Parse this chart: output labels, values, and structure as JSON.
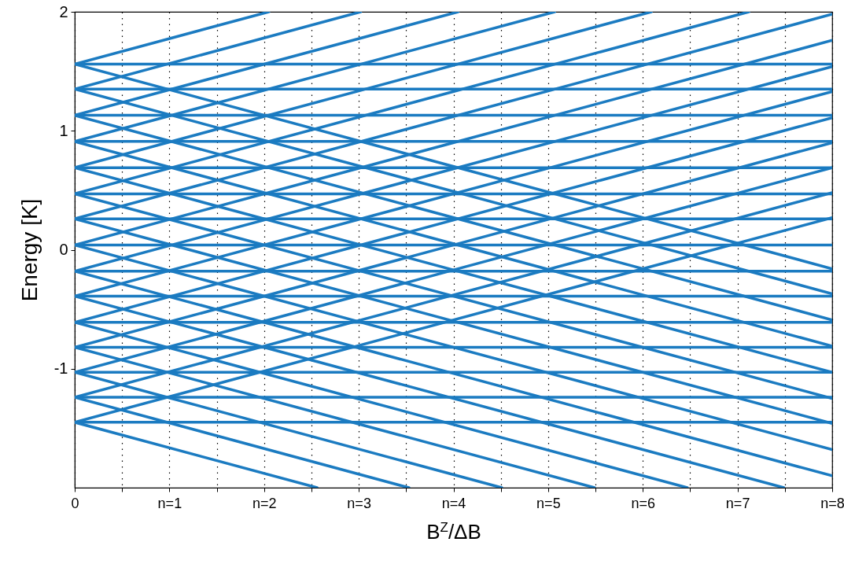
{
  "chart_data": {
    "type": "line",
    "xlabel": "B$^{Z}$/ΔB",
    "ylabel": "Energy [K]",
    "xlim": [
      0,
      8
    ],
    "ylim": [
      -2,
      2
    ],
    "xticks": [
      0,
      {
        "value": 0.5,
        "label": null
      },
      {
        "value": 1,
        "label": "n=1"
      },
      {
        "value": 1.5,
        "label": null
      },
      {
        "value": 2,
        "label": "n=2"
      },
      {
        "value": 2.5,
        "label": null
      },
      {
        "value": 3,
        "label": "n=3"
      },
      {
        "value": 3.5,
        "label": null
      },
      {
        "value": 4,
        "label": "n=4"
      },
      {
        "value": 4.5,
        "label": null
      },
      {
        "value": 5,
        "label": "n=5"
      },
      {
        "value": 5.5,
        "label": null
      },
      {
        "value": 6,
        "label": "n=6"
      },
      {
        "value": 6.5,
        "label": null
      },
      {
        "value": 7,
        "label": "n=7"
      },
      {
        "value": 7.5,
        "label": null
      },
      {
        "value": 8,
        "label": "n=8"
      }
    ],
    "yticks": [
      -1,
      0,
      1,
      2
    ],
    "grid": "x",
    "line_style": "solid",
    "series": [
      {
        "color": "#1b7bc1",
        "x": [
          0,
          8
        ],
        "values": [
          1.56,
          1.56
        ]
      },
      {
        "color": "#1b7bc1",
        "x": [
          0,
          8
        ],
        "values": [
          1.35,
          1.35
        ]
      },
      {
        "color": "#1b7bc1",
        "x": [
          0,
          8
        ],
        "values": [
          1.13,
          1.13
        ]
      },
      {
        "color": "#1b7bc1",
        "x": [
          0,
          8
        ],
        "values": [
          0.91,
          0.91
        ]
      },
      {
        "color": "#1b7bc1",
        "x": [
          0,
          8
        ],
        "values": [
          0.69,
          0.69
        ]
      },
      {
        "color": "#1b7bc1",
        "x": [
          0,
          8
        ],
        "values": [
          0.47,
          0.47
        ]
      },
      {
        "color": "#1b7bc1",
        "x": [
          0,
          8
        ],
        "values": [
          0.26,
          0.26
        ]
      },
      {
        "color": "#1b7bc1",
        "x": [
          0,
          8
        ],
        "values": [
          0.04,
          0.04
        ]
      },
      {
        "color": "#1b7bc1",
        "x": [
          0,
          8
        ],
        "values": [
          -0.18,
          -0.18
        ]
      },
      {
        "color": "#1b7bc1",
        "x": [
          0,
          8
        ],
        "values": [
          -0.39,
          -0.39
        ]
      },
      {
        "color": "#1b7bc1",
        "x": [
          0,
          8
        ],
        "values": [
          -0.61,
          -0.61
        ]
      },
      {
        "color": "#1b7bc1",
        "x": [
          0,
          8
        ],
        "values": [
          -0.82,
          -0.82
        ]
      },
      {
        "color": "#1b7bc1",
        "x": [
          0,
          8
        ],
        "values": [
          -1.03,
          -1.03
        ]
      },
      {
        "color": "#1b7bc1",
        "x": [
          0,
          8
        ],
        "values": [
          -1.24,
          -1.24
        ]
      },
      {
        "color": "#1b7bc1",
        "x": [
          0,
          8
        ],
        "values": [
          -1.45,
          -1.45
        ]
      },
      {
        "color": "#1b7bc1",
        "x": [
          0,
          2.05
        ],
        "values": [
          1.56,
          2
        ]
      },
      {
        "color": "#1b7bc1",
        "x": [
          0,
          3.02
        ],
        "values": [
          1.35,
          2
        ]
      },
      {
        "color": "#1b7bc1",
        "x": [
          0,
          4.05
        ],
        "values": [
          1.13,
          2
        ]
      },
      {
        "color": "#1b7bc1",
        "x": [
          0,
          5.07
        ],
        "values": [
          0.91,
          2
        ]
      },
      {
        "color": "#1b7bc1",
        "x": [
          0,
          6.09
        ],
        "values": [
          0.69,
          2
        ]
      },
      {
        "color": "#1b7bc1",
        "x": [
          0,
          7.12
        ],
        "values": [
          0.47,
          2
        ]
      },
      {
        "color": "#1b7bc1",
        "x": [
          0,
          8
        ],
        "values": [
          0.26,
          1.98
        ]
      },
      {
        "color": "#1b7bc1",
        "x": [
          0,
          8
        ],
        "values": [
          0.04,
          1.76
        ]
      },
      {
        "color": "#1b7bc1",
        "x": [
          0,
          8
        ],
        "values": [
          -0.18,
          1.54
        ]
      },
      {
        "color": "#1b7bc1",
        "x": [
          0,
          8
        ],
        "values": [
          -0.39,
          1.33
        ]
      },
      {
        "color": "#1b7bc1",
        "x": [
          0,
          8
        ],
        "values": [
          -0.61,
          1.11
        ]
      },
      {
        "color": "#1b7bc1",
        "x": [
          0,
          8
        ],
        "values": [
          -0.82,
          0.9
        ]
      },
      {
        "color": "#1b7bc1",
        "x": [
          0,
          8
        ],
        "values": [
          -1.03,
          0.69
        ]
      },
      {
        "color": "#1b7bc1",
        "x": [
          0,
          8
        ],
        "values": [
          -1.24,
          0.48
        ]
      },
      {
        "color": "#1b7bc1",
        "x": [
          0,
          8
        ],
        "values": [
          -1.45,
          0.27
        ]
      },
      {
        "color": "#1b7bc1",
        "x": [
          0,
          8
        ],
        "values": [
          1.56,
          -0.16
        ]
      },
      {
        "color": "#1b7bc1",
        "x": [
          0,
          8
        ],
        "values": [
          1.35,
          -0.37
        ]
      },
      {
        "color": "#1b7bc1",
        "x": [
          0,
          8
        ],
        "values": [
          1.13,
          -0.59
        ]
      },
      {
        "color": "#1b7bc1",
        "x": [
          0,
          8
        ],
        "values": [
          0.91,
          -0.81
        ]
      },
      {
        "color": "#1b7bc1",
        "x": [
          0,
          8
        ],
        "values": [
          0.69,
          -1.03
        ]
      },
      {
        "color": "#1b7bc1",
        "x": [
          0,
          8
        ],
        "values": [
          0.47,
          -1.25
        ]
      },
      {
        "color": "#1b7bc1",
        "x": [
          0,
          8
        ],
        "values": [
          0.26,
          -1.46
        ]
      },
      {
        "color": "#1b7bc1",
        "x": [
          0,
          8
        ],
        "values": [
          0.04,
          -1.68
        ]
      },
      {
        "color": "#1b7bc1",
        "x": [
          0,
          8
        ],
        "values": [
          -0.18,
          -1.9
        ]
      },
      {
        "color": "#1b7bc1",
        "x": [
          0,
          7.49
        ],
        "values": [
          -0.39,
          -2
        ]
      },
      {
        "color": "#1b7bc1",
        "x": [
          0,
          6.47
        ],
        "values": [
          -0.61,
          -2
        ]
      },
      {
        "color": "#1b7bc1",
        "x": [
          0,
          5.49
        ],
        "values": [
          -0.82,
          -2
        ]
      },
      {
        "color": "#1b7bc1",
        "x": [
          0,
          4.51
        ],
        "values": [
          -1.03,
          -2
        ]
      },
      {
        "color": "#1b7bc1",
        "x": [
          0,
          3.53
        ],
        "values": [
          -1.24,
          -2
        ]
      },
      {
        "color": "#1b7bc1",
        "x": [
          0,
          2.56
        ],
        "values": [
          -1.45,
          -2
        ]
      }
    ]
  }
}
